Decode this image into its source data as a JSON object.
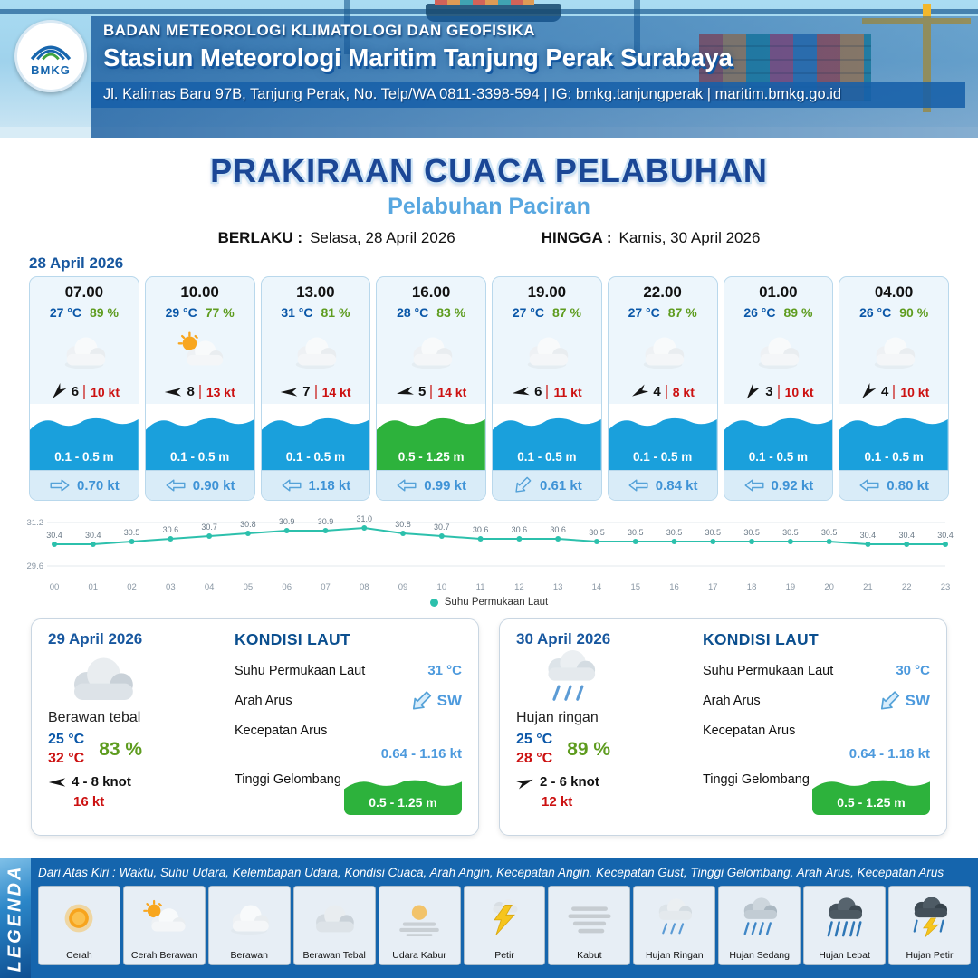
{
  "header": {
    "org": "BADAN METEOROLOGI KLIMATOLOGI DAN GEOFISIKA",
    "station": "Stasiun Meteorologi Maritim Tanjung Perak Surabaya",
    "address": "Jl. Kalimas Baru 97B, Tanjung Perak, No. Telp/WA 0811-3398-594 | IG: bmkg.tanjungperak | maritim.bmkg.go.id",
    "logo_text": "BMKG"
  },
  "title": {
    "main": "PRAKIRAAN CUACA PELABUHAN",
    "subtitle": "Pelabuhan Paciran",
    "berlaku_label": "BERLAKU :",
    "berlaku_value": "Selasa, 28 April 2026",
    "hingga_label": "HINGGA :",
    "hingga_value": "Kamis, 30 April 2026"
  },
  "forecast": {
    "date": "28 April 2026",
    "cards": [
      {
        "time": "07.00",
        "temp": "27 °C",
        "humidity": "89 %",
        "icon": "cloud",
        "wind_speed": "6",
        "wind_gust": "10 kt",
        "wind_dir_deg": -50,
        "wave": "0.1 - 0.5 m",
        "wave_style": "blue",
        "current": "0.70 kt",
        "current_dir_deg": 180
      },
      {
        "time": "10.00",
        "temp": "29 °C",
        "humidity": "77 %",
        "icon": "sun-cloud",
        "wind_speed": "8",
        "wind_gust": "13 kt",
        "wind_dir_deg": 0,
        "wave": "0.1 - 0.5 m",
        "wave_style": "blue",
        "current": "0.90 kt",
        "current_dir_deg": 0
      },
      {
        "time": "13.00",
        "temp": "31 °C",
        "humidity": "81 %",
        "icon": "cloud",
        "wind_speed": "7",
        "wind_gust": "14 kt",
        "wind_dir_deg": 0,
        "wave": "0.1 - 0.5 m",
        "wave_style": "blue",
        "current": "1.18 kt",
        "current_dir_deg": 0
      },
      {
        "time": "16.00",
        "temp": "28 °C",
        "humidity": "83 %",
        "icon": "cloud",
        "wind_speed": "5",
        "wind_gust": "14 kt",
        "wind_dir_deg": -12,
        "wave": "0.5 - 1.25 m",
        "wave_style": "green",
        "current": "0.99 kt",
        "current_dir_deg": 0
      },
      {
        "time": "19.00",
        "temp": "27 °C",
        "humidity": "87 %",
        "icon": "cloud",
        "wind_speed": "6",
        "wind_gust": "11 kt",
        "wind_dir_deg": -8,
        "wave": "0.1 - 0.5 m",
        "wave_style": "blue",
        "current": "0.61 kt",
        "current_dir_deg": -45
      },
      {
        "time": "22.00",
        "temp": "27 °C",
        "humidity": "87 %",
        "icon": "cloud",
        "wind_speed": "4",
        "wind_gust": "8 kt",
        "wind_dir_deg": -30,
        "wave": "0.1 - 0.5 m",
        "wave_style": "blue",
        "current": "0.84 kt",
        "current_dir_deg": 0
      },
      {
        "time": "01.00",
        "temp": "26 °C",
        "humidity": "89 %",
        "icon": "cloud",
        "wind_speed": "3",
        "wind_gust": "10 kt",
        "wind_dir_deg": -55,
        "wave": "0.1 - 0.5 m",
        "wave_style": "blue",
        "current": "0.92 kt",
        "current_dir_deg": 0
      },
      {
        "time": "04.00",
        "temp": "26 °C",
        "humidity": "90 %",
        "icon": "cloud",
        "wind_speed": "4",
        "wind_gust": "10 kt",
        "wind_dir_deg": -50,
        "wave": "0.1 - 0.5 m",
        "wave_style": "blue",
        "current": "0.80 kt",
        "current_dir_deg": 0
      }
    ]
  },
  "chart_data": {
    "type": "line",
    "legend": "Suhu Permukaan Laut",
    "x_labels": [
      "00",
      "01",
      "02",
      "03",
      "04",
      "05",
      "06",
      "07",
      "08",
      "09",
      "10",
      "11",
      "12",
      "13",
      "14",
      "15",
      "16",
      "17",
      "18",
      "19",
      "20",
      "21",
      "22",
      "23"
    ],
    "series": [
      {
        "name": "Suhu Permukaan Laut",
        "values": [
          30.4,
          30.4,
          30.5,
          30.6,
          30.7,
          30.8,
          30.9,
          30.9,
          31.0,
          30.8,
          30.7,
          30.6,
          30.6,
          30.6,
          30.5,
          30.5,
          30.5,
          30.5,
          30.5,
          30.5,
          30.5,
          30.4,
          30.4,
          30.4
        ]
      }
    ],
    "ylim": [
      29.6,
      31.2
    ],
    "y_ticks": [
      "31.2",
      "29.6"
    ],
    "color": "#2cc0ac",
    "legend_position": "bottom"
  },
  "daily": [
    {
      "date": "29 April 2026",
      "icon": "cloud-thick",
      "condition": "Berawan tebal",
      "temp_min": "25 °C",
      "humidity": "83 %",
      "temp_max": "32 °C",
      "wind_range": "4  - 8 knot",
      "wind_dir_deg": 0,
      "gust": "16 kt",
      "sea": {
        "title": "KONDISI LAUT",
        "sst_label": "Suhu Permukaan Laut",
        "sst": "31 °C",
        "arah_label": "Arah Arus",
        "arah": "SW",
        "arah_deg": -45,
        "kecepatan_label": "Kecepatan Arus",
        "kecepatan": "0.64  - 1.16 kt",
        "gelombang_label": "Tinggi Gelombang",
        "gelombang": "0.5 - 1.25 m"
      }
    },
    {
      "date": "30 April 2026",
      "icon": "rain-light",
      "condition": "Hujan ringan",
      "temp_min": "25 °C",
      "humidity": "89 %",
      "temp_max": "28 °C",
      "wind_range": "2  - 6 knot",
      "wind_dir_deg": 160,
      "gust": "12 kt",
      "sea": {
        "title": "KONDISI LAUT",
        "sst_label": "Suhu Permukaan Laut",
        "sst": "30 °C",
        "arah_label": "Arah Arus",
        "arah": "SW",
        "arah_deg": -45,
        "kecepatan_label": "Kecepatan Arus",
        "kecepatan": "0.64  - 1.18 kt",
        "gelombang_label": "Tinggi Gelombang",
        "gelombang": "0.5 - 1.25 m"
      }
    }
  ],
  "legend": {
    "title": "LEGENDA",
    "note": "Dari Atas Kiri : Waktu, Suhu Udara, Kelembapan Udara, Kondisi Cuaca, Arah Angin, Kecepatan Angin, Kecepatan Gust, Tinggi Gelombang, Arah Arus, Kecepatan Arus",
    "items": [
      {
        "label": "Cerah",
        "icon": "sun"
      },
      {
        "label": "Cerah Berawan",
        "icon": "sun-cloud"
      },
      {
        "label": "Berawan",
        "icon": "cloud"
      },
      {
        "label": "Berawan Tebal",
        "icon": "cloud-thick"
      },
      {
        "label": "Udara Kabur",
        "icon": "haze"
      },
      {
        "label": "Petir",
        "icon": "thunder"
      },
      {
        "label": "Kabut",
        "icon": "fog"
      },
      {
        "label": "Hujan Ringan",
        "icon": "rain-light"
      },
      {
        "label": "Hujan Sedang",
        "icon": "rain-mid"
      },
      {
        "label": "Hujan Lebat",
        "icon": "rain-heavy"
      },
      {
        "label": "Hujan Petir",
        "icon": "rain-thunder"
      }
    ]
  },
  "colors": {
    "accent_blue": "#1a5fa8",
    "subtitle_blue": "#58a7e0",
    "temp_blue": "#0a57a8",
    "humidity_green": "#5e9c1f",
    "gust_red": "#cc1111",
    "wave_blue": "#1aa0dc",
    "wave_green": "#2db23c",
    "sst_line": "#2cc0ac",
    "legend_bg": "#1565ad"
  }
}
